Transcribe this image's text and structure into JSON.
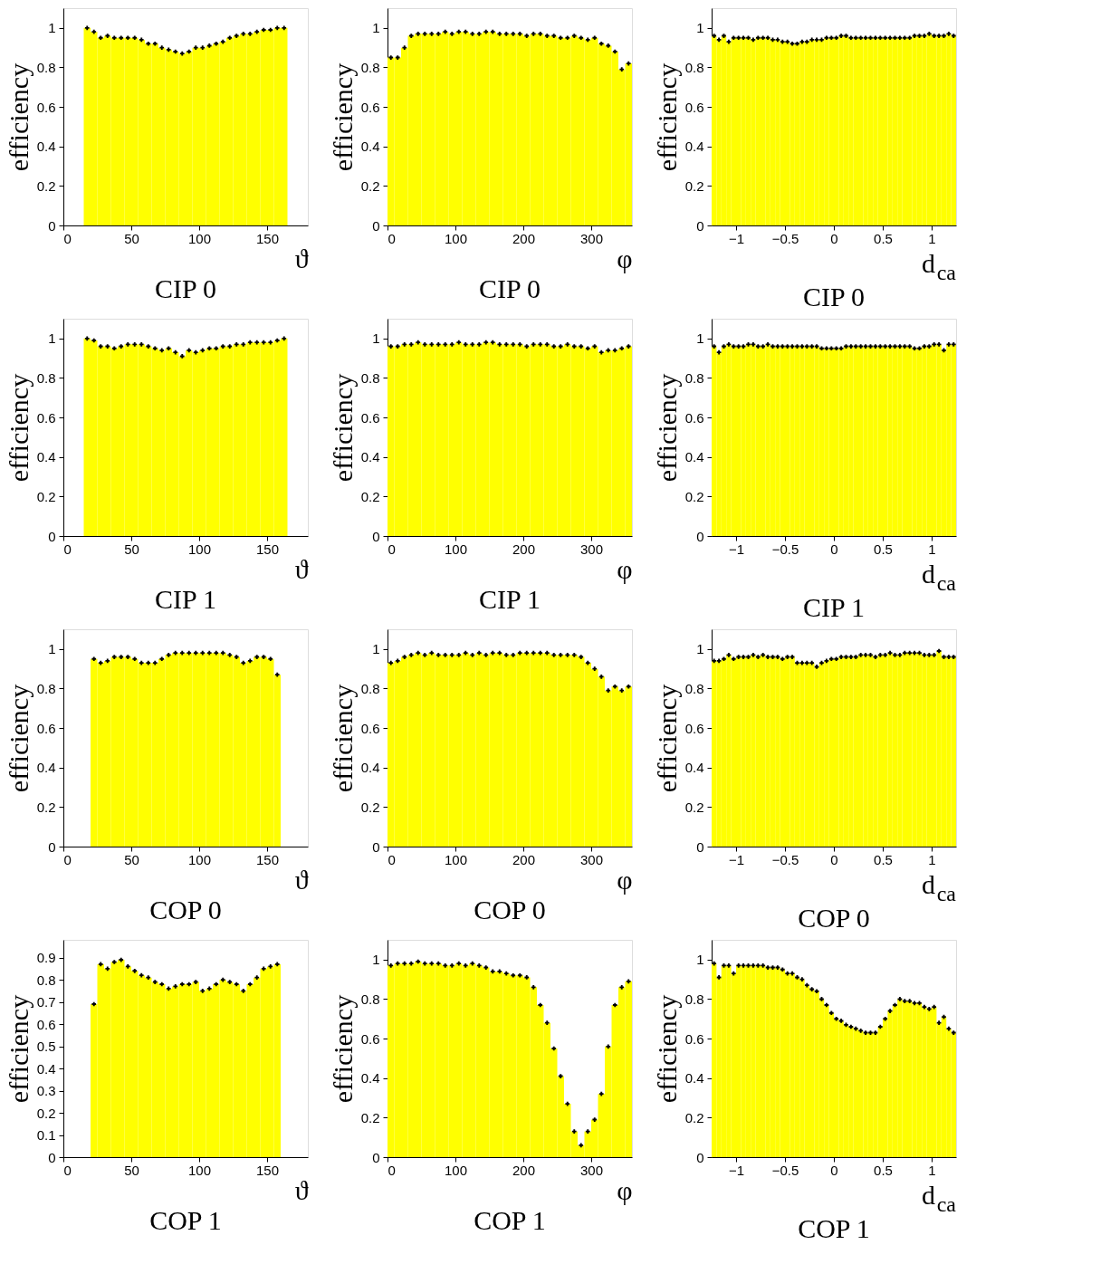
{
  "chart_data": [
    {
      "type": "histogram",
      "title": "CIP 0",
      "xlabel": "ϑ",
      "ylabel": "efficiency",
      "color": "#ffff00",
      "marker": "cross",
      "xlim": [
        0,
        180
      ],
      "xticks": [
        0,
        50,
        100,
        150
      ],
      "ylim": [
        0,
        1.1
      ],
      "yticks": [
        0,
        0.2,
        0.4,
        0.6,
        0.8,
        1
      ],
      "bins": [
        15,
        20,
        25,
        30,
        35,
        40,
        45,
        50,
        55,
        60,
        65,
        70,
        75,
        80,
        85,
        90,
        95,
        100,
        105,
        110,
        115,
        120,
        125,
        130,
        135,
        140,
        145,
        150,
        155,
        160,
        165
      ],
      "values": [
        1.0,
        0.98,
        0.95,
        0.96,
        0.95,
        0.95,
        0.95,
        0.95,
        0.94,
        0.92,
        0.92,
        0.9,
        0.89,
        0.88,
        0.87,
        0.88,
        0.9,
        0.9,
        0.91,
        0.92,
        0.93,
        0.95,
        0.96,
        0.97,
        0.97,
        0.98,
        0.99,
        0.99,
        1.0,
        1.0
      ],
      "series": [
        {
          "type": "scatter",
          "color": "#000000",
          "x": [
            17.5,
            22.5,
            27.5,
            32.5,
            37.5,
            42.5,
            47.5,
            52.5,
            57.5,
            62.5,
            67.5,
            72.5,
            77.5,
            82.5,
            87.5,
            92.5,
            97.5,
            102.5,
            107.5,
            112.5,
            117.5,
            122.5,
            127.5,
            132.5,
            137.5,
            142.5,
            147.5,
            152.5,
            157.5,
            162.5
          ],
          "values": [
            1.0,
            0.98,
            0.95,
            0.96,
            0.95,
            0.95,
            0.95,
            0.95,
            0.94,
            0.92,
            0.92,
            0.9,
            0.89,
            0.88,
            0.87,
            0.88,
            0.9,
            0.9,
            0.91,
            0.92,
            0.93,
            0.95,
            0.96,
            0.97,
            0.97,
            0.98,
            0.99,
            0.99,
            1.0,
            1.0
          ]
        }
      ]
    },
    {
      "type": "histogram",
      "title": "CIP 0",
      "xlabel": "φ",
      "ylabel": "efficiency",
      "color": "#ffff00",
      "marker": "cross",
      "xlim": [
        0,
        360
      ],
      "xticks": [
        0,
        100,
        200,
        300
      ],
      "ylim": [
        0,
        1.1
      ],
      "yticks": [
        0,
        0.2,
        0.4,
        0.6,
        0.8,
        1
      ],
      "bins": [
        0,
        10,
        20,
        30,
        40,
        50,
        60,
        70,
        80,
        90,
        100,
        110,
        120,
        130,
        140,
        150,
        160,
        170,
        180,
        190,
        200,
        210,
        220,
        230,
        240,
        250,
        260,
        270,
        280,
        290,
        300,
        310,
        320,
        330,
        340,
        350,
        360
      ],
      "values": [
        0.85,
        0.85,
        0.9,
        0.96,
        0.97,
        0.97,
        0.97,
        0.97,
        0.98,
        0.97,
        0.98,
        0.98,
        0.97,
        0.97,
        0.98,
        0.98,
        0.97,
        0.97,
        0.97,
        0.97,
        0.96,
        0.97,
        0.97,
        0.96,
        0.96,
        0.95,
        0.95,
        0.96,
        0.95,
        0.94,
        0.95,
        0.92,
        0.91,
        0.88,
        0.79,
        0.82
      ],
      "series": [
        {
          "type": "scatter",
          "color": "#000000",
          "x": [
            5,
            15,
            25,
            35,
            45,
            55,
            65,
            75,
            85,
            95,
            105,
            115,
            125,
            135,
            145,
            155,
            165,
            175,
            185,
            195,
            205,
            215,
            225,
            235,
            245,
            255,
            265,
            275,
            285,
            295,
            305,
            315,
            325,
            335,
            345,
            355
          ],
          "values": [
            0.85,
            0.85,
            0.9,
            0.96,
            0.97,
            0.97,
            0.97,
            0.97,
            0.98,
            0.97,
            0.98,
            0.98,
            0.97,
            0.97,
            0.98,
            0.98,
            0.97,
            0.97,
            0.97,
            0.97,
            0.96,
            0.97,
            0.97,
            0.96,
            0.96,
            0.95,
            0.95,
            0.96,
            0.95,
            0.94,
            0.95,
            0.92,
            0.91,
            0.88,
            0.79,
            0.82
          ]
        }
      ]
    },
    {
      "type": "histogram",
      "title": "CIP 0",
      "xlabel": "d$_{ca}$",
      "ylabel": "efficiency",
      "color": "#ffff00",
      "marker": "cross",
      "xlim": [
        -1.25,
        1.25
      ],
      "xticks": [
        -1,
        -0.5,
        0,
        0.5,
        1
      ],
      "ylim": [
        0,
        1.1
      ],
      "yticks": [
        0,
        0.2,
        0.4,
        0.6,
        0.8,
        1
      ],
      "bins": [
        -1.25,
        -1.2,
        -1.15,
        -1.1,
        -1.05,
        -1.0,
        -0.95,
        -0.9,
        -0.85,
        -0.8,
        -0.75,
        -0.7,
        -0.65,
        -0.6,
        -0.55,
        -0.5,
        -0.45,
        -0.4,
        -0.35,
        -0.3,
        -0.25,
        -0.2,
        -0.15,
        -0.1,
        -0.05,
        0,
        0.05,
        0.1,
        0.15,
        0.2,
        0.25,
        0.3,
        0.35,
        0.4,
        0.45,
        0.5,
        0.55,
        0.6,
        0.65,
        0.7,
        0.75,
        0.8,
        0.85,
        0.9,
        0.95,
        1.0,
        1.05,
        1.1,
        1.15,
        1.2,
        1.25
      ],
      "values": [
        0.96,
        0.94,
        0.96,
        0.93,
        0.95,
        0.95,
        0.95,
        0.95,
        0.94,
        0.95,
        0.95,
        0.95,
        0.94,
        0.94,
        0.93,
        0.93,
        0.92,
        0.92,
        0.93,
        0.93,
        0.94,
        0.94,
        0.94,
        0.95,
        0.95,
        0.95,
        0.96,
        0.96,
        0.95,
        0.95,
        0.95,
        0.95,
        0.95,
        0.95,
        0.95,
        0.95,
        0.95,
        0.95,
        0.95,
        0.95,
        0.95,
        0.96,
        0.96,
        0.96,
        0.97,
        0.96,
        0.96,
        0.96,
        0.97,
        0.96
      ],
      "series": [
        {
          "type": "scatter",
          "color": "#000000",
          "x": [
            -1.225,
            -1.175,
            -1.125,
            -1.075,
            -1.025,
            -0.975,
            -0.925,
            -0.875,
            -0.825,
            -0.775,
            -0.725,
            -0.675,
            -0.625,
            -0.575,
            -0.525,
            -0.475,
            -0.425,
            -0.375,
            -0.325,
            -0.275,
            -0.225,
            -0.175,
            -0.125,
            -0.075,
            -0.025,
            0.025,
            0.075,
            0.125,
            0.175,
            0.225,
            0.275,
            0.325,
            0.375,
            0.425,
            0.475,
            0.525,
            0.575,
            0.625,
            0.675,
            0.725,
            0.775,
            0.825,
            0.875,
            0.925,
            0.975,
            1.025,
            1.075,
            1.125,
            1.175,
            1.225
          ],
          "values": [
            0.96,
            0.94,
            0.96,
            0.93,
            0.95,
            0.95,
            0.95,
            0.95,
            0.94,
            0.95,
            0.95,
            0.95,
            0.94,
            0.94,
            0.93,
            0.93,
            0.92,
            0.92,
            0.93,
            0.93,
            0.94,
            0.94,
            0.94,
            0.95,
            0.95,
            0.95,
            0.96,
            0.96,
            0.95,
            0.95,
            0.95,
            0.95,
            0.95,
            0.95,
            0.95,
            0.95,
            0.95,
            0.95,
            0.95,
            0.95,
            0.95,
            0.96,
            0.96,
            0.96,
            0.97,
            0.96,
            0.96,
            0.96,
            0.97,
            0.96
          ]
        }
      ]
    },
    {
      "type": "histogram",
      "title": "CIP 1",
      "xlabel": "ϑ",
      "ylabel": "efficiency",
      "color": "#ffff00",
      "marker": "cross",
      "xlim": [
        0,
        180
      ],
      "xticks": [
        0,
        50,
        100,
        150
      ],
      "ylim": [
        0,
        1.1
      ],
      "yticks": [
        0,
        0.2,
        0.4,
        0.6,
        0.8,
        1
      ],
      "bins": [
        15,
        20,
        25,
        30,
        35,
        40,
        45,
        50,
        55,
        60,
        65,
        70,
        75,
        80,
        85,
        90,
        95,
        100,
        105,
        110,
        115,
        120,
        125,
        130,
        135,
        140,
        145,
        150,
        155,
        160,
        165
      ],
      "values": [
        1.0,
        0.99,
        0.96,
        0.96,
        0.95,
        0.96,
        0.97,
        0.97,
        0.97,
        0.96,
        0.95,
        0.94,
        0.95,
        0.93,
        0.91,
        0.94,
        0.93,
        0.94,
        0.95,
        0.95,
        0.96,
        0.96,
        0.97,
        0.97,
        0.98,
        0.98,
        0.98,
        0.98,
        0.99,
        1.0
      ],
      "series": [
        {
          "type": "scatter",
          "color": "#000000",
          "x": [
            17.5,
            22.5,
            27.5,
            32.5,
            37.5,
            42.5,
            47.5,
            52.5,
            57.5,
            62.5,
            67.5,
            72.5,
            77.5,
            82.5,
            87.5,
            92.5,
            97.5,
            102.5,
            107.5,
            112.5,
            117.5,
            122.5,
            127.5,
            132.5,
            137.5,
            142.5,
            147.5,
            152.5,
            157.5,
            162.5
          ],
          "values": [
            1.0,
            0.99,
            0.96,
            0.96,
            0.95,
            0.96,
            0.97,
            0.97,
            0.97,
            0.96,
            0.95,
            0.94,
            0.95,
            0.93,
            0.91,
            0.94,
            0.93,
            0.94,
            0.95,
            0.95,
            0.96,
            0.96,
            0.97,
            0.97,
            0.98,
            0.98,
            0.98,
            0.98,
            0.99,
            1.0
          ]
        }
      ]
    },
    {
      "type": "histogram",
      "title": "CIP 1",
      "xlabel": "φ",
      "ylabel": "efficiency",
      "color": "#ffff00",
      "marker": "cross",
      "xlim": [
        0,
        360
      ],
      "xticks": [
        0,
        100,
        200,
        300
      ],
      "ylim": [
        0,
        1.1
      ],
      "yticks": [
        0,
        0.2,
        0.4,
        0.6,
        0.8,
        1
      ],
      "bins": [
        0,
        10,
        20,
        30,
        40,
        50,
        60,
        70,
        80,
        90,
        100,
        110,
        120,
        130,
        140,
        150,
        160,
        170,
        180,
        190,
        200,
        210,
        220,
        230,
        240,
        250,
        260,
        270,
        280,
        290,
        300,
        310,
        320,
        330,
        340,
        350,
        360
      ],
      "values": [
        0.96,
        0.96,
        0.97,
        0.97,
        0.98,
        0.97,
        0.97,
        0.97,
        0.97,
        0.97,
        0.98,
        0.97,
        0.97,
        0.97,
        0.98,
        0.98,
        0.97,
        0.97,
        0.97,
        0.97,
        0.96,
        0.97,
        0.97,
        0.97,
        0.96,
        0.96,
        0.97,
        0.96,
        0.96,
        0.95,
        0.96,
        0.93,
        0.94,
        0.94,
        0.95,
        0.96
      ],
      "series": [
        {
          "type": "scatter",
          "color": "#000000",
          "x": [
            5,
            15,
            25,
            35,
            45,
            55,
            65,
            75,
            85,
            95,
            105,
            115,
            125,
            135,
            145,
            155,
            165,
            175,
            185,
            195,
            205,
            215,
            225,
            235,
            245,
            255,
            265,
            275,
            285,
            295,
            305,
            315,
            325,
            335,
            345,
            355
          ],
          "values": [
            0.96,
            0.96,
            0.97,
            0.97,
            0.98,
            0.97,
            0.97,
            0.97,
            0.97,
            0.97,
            0.98,
            0.97,
            0.97,
            0.97,
            0.98,
            0.98,
            0.97,
            0.97,
            0.97,
            0.97,
            0.96,
            0.97,
            0.97,
            0.97,
            0.96,
            0.96,
            0.97,
            0.96,
            0.96,
            0.95,
            0.96,
            0.93,
            0.94,
            0.94,
            0.95,
            0.96
          ]
        }
      ]
    },
    {
      "type": "histogram",
      "title": "CIP 1",
      "xlabel": "d$_{ca}$",
      "ylabel": "efficiency",
      "color": "#ffff00",
      "marker": "cross",
      "xlim": [
        -1.25,
        1.25
      ],
      "xticks": [
        -1,
        -0.5,
        0,
        0.5,
        1
      ],
      "ylim": [
        0,
        1.1
      ],
      "yticks": [
        0,
        0.2,
        0.4,
        0.6,
        0.8,
        1
      ],
      "bins": [
        -1.25,
        -1.2,
        -1.15,
        -1.1,
        -1.05,
        -1.0,
        -0.95,
        -0.9,
        -0.85,
        -0.8,
        -0.75,
        -0.7,
        -0.65,
        -0.6,
        -0.55,
        -0.5,
        -0.45,
        -0.4,
        -0.35,
        -0.3,
        -0.25,
        -0.2,
        -0.15,
        -0.1,
        -0.05,
        0,
        0.05,
        0.1,
        0.15,
        0.2,
        0.25,
        0.3,
        0.35,
        0.4,
        0.45,
        0.5,
        0.55,
        0.6,
        0.65,
        0.7,
        0.75,
        0.8,
        0.85,
        0.9,
        0.95,
        1.0,
        1.05,
        1.1,
        1.15,
        1.2,
        1.25
      ],
      "values": [
        0.96,
        0.93,
        0.96,
        0.97,
        0.96,
        0.96,
        0.96,
        0.97,
        0.97,
        0.96,
        0.96,
        0.97,
        0.96,
        0.96,
        0.96,
        0.96,
        0.96,
        0.96,
        0.96,
        0.96,
        0.96,
        0.96,
        0.95,
        0.95,
        0.95,
        0.95,
        0.95,
        0.96,
        0.96,
        0.96,
        0.96,
        0.96,
        0.96,
        0.96,
        0.96,
        0.96,
        0.96,
        0.96,
        0.96,
        0.96,
        0.96,
        0.95,
        0.95,
        0.96,
        0.96,
        0.97,
        0.97,
        0.94,
        0.97,
        0.97
      ],
      "series": [
        {
          "type": "scatter",
          "color": "#000000",
          "x": [
            -1.225,
            -1.175,
            -1.125,
            -1.075,
            -1.025,
            -0.975,
            -0.925,
            -0.875,
            -0.825,
            -0.775,
            -0.725,
            -0.675,
            -0.625,
            -0.575,
            -0.525,
            -0.475,
            -0.425,
            -0.375,
            -0.325,
            -0.275,
            -0.225,
            -0.175,
            -0.125,
            -0.075,
            -0.025,
            0.025,
            0.075,
            0.125,
            0.175,
            0.225,
            0.275,
            0.325,
            0.375,
            0.425,
            0.475,
            0.525,
            0.575,
            0.625,
            0.675,
            0.725,
            0.775,
            0.825,
            0.875,
            0.925,
            0.975,
            1.025,
            1.075,
            1.125,
            1.175,
            1.225
          ],
          "values": [
            0.96,
            0.93,
            0.96,
            0.97,
            0.96,
            0.96,
            0.96,
            0.97,
            0.97,
            0.96,
            0.96,
            0.97,
            0.96,
            0.96,
            0.96,
            0.96,
            0.96,
            0.96,
            0.96,
            0.96,
            0.96,
            0.96,
            0.95,
            0.95,
            0.95,
            0.95,
            0.95,
            0.96,
            0.96,
            0.96,
            0.96,
            0.96,
            0.96,
            0.96,
            0.96,
            0.96,
            0.96,
            0.96,
            0.96,
            0.96,
            0.96,
            0.95,
            0.95,
            0.96,
            0.96,
            0.97,
            0.97,
            0.94,
            0.97,
            0.97
          ]
        }
      ]
    },
    {
      "type": "histogram",
      "title": "COP 0",
      "xlabel": "ϑ",
      "ylabel": "efficiency",
      "color": "#ffff00",
      "marker": "cross",
      "xlim": [
        0,
        180
      ],
      "xticks": [
        0,
        50,
        100,
        150
      ],
      "ylim": [
        0,
        1.1
      ],
      "yticks": [
        0,
        0.2,
        0.4,
        0.6,
        0.8,
        1
      ],
      "bins": [
        20,
        25,
        30,
        35,
        40,
        45,
        50,
        55,
        60,
        65,
        70,
        75,
        80,
        85,
        90,
        95,
        100,
        105,
        110,
        115,
        120,
        125,
        130,
        135,
        140,
        145,
        150,
        155,
        160
      ],
      "values": [
        0.95,
        0.93,
        0.94,
        0.96,
        0.96,
        0.96,
        0.95,
        0.93,
        0.93,
        0.93,
        0.95,
        0.97,
        0.98,
        0.98,
        0.98,
        0.98,
        0.98,
        0.98,
        0.98,
        0.98,
        0.97,
        0.96,
        0.93,
        0.94,
        0.96,
        0.96,
        0.95,
        0.87
      ],
      "series": [
        {
          "type": "scatter",
          "color": "#000000",
          "x": [
            22.5,
            27.5,
            32.5,
            37.5,
            42.5,
            47.5,
            52.5,
            57.5,
            62.5,
            67.5,
            72.5,
            77.5,
            82.5,
            87.5,
            92.5,
            97.5,
            102.5,
            107.5,
            112.5,
            117.5,
            122.5,
            127.5,
            132.5,
            137.5,
            142.5,
            147.5,
            152.5,
            157.5
          ],
          "values": [
            0.95,
            0.93,
            0.94,
            0.96,
            0.96,
            0.96,
            0.95,
            0.93,
            0.93,
            0.93,
            0.95,
            0.97,
            0.98,
            0.98,
            0.98,
            0.98,
            0.98,
            0.98,
            0.98,
            0.98,
            0.97,
            0.96,
            0.93,
            0.94,
            0.96,
            0.96,
            0.95,
            0.87
          ]
        }
      ]
    },
    {
      "type": "histogram",
      "title": "COP 0",
      "xlabel": "φ",
      "ylabel": "efficiency",
      "color": "#ffff00",
      "marker": "cross",
      "xlim": [
        0,
        360
      ],
      "xticks": [
        0,
        100,
        200,
        300
      ],
      "ylim": [
        0,
        1.1
      ],
      "yticks": [
        0,
        0.2,
        0.4,
        0.6,
        0.8,
        1
      ],
      "bins": [
        0,
        10,
        20,
        30,
        40,
        50,
        60,
        70,
        80,
        90,
        100,
        110,
        120,
        130,
        140,
        150,
        160,
        170,
        180,
        190,
        200,
        210,
        220,
        230,
        240,
        250,
        260,
        270,
        280,
        290,
        300,
        310,
        320,
        330,
        340,
        350,
        360
      ],
      "values": [
        0.93,
        0.94,
        0.96,
        0.97,
        0.98,
        0.97,
        0.98,
        0.97,
        0.97,
        0.97,
        0.97,
        0.98,
        0.97,
        0.98,
        0.97,
        0.98,
        0.98,
        0.97,
        0.97,
        0.98,
        0.98,
        0.98,
        0.98,
        0.98,
        0.97,
        0.97,
        0.97,
        0.97,
        0.96,
        0.93,
        0.9,
        0.86,
        0.79,
        0.81,
        0.79,
        0.81
      ],
      "series": [
        {
          "type": "scatter",
          "color": "#000000",
          "x": [
            5,
            15,
            25,
            35,
            45,
            55,
            65,
            75,
            85,
            95,
            105,
            115,
            125,
            135,
            145,
            155,
            165,
            175,
            185,
            195,
            205,
            215,
            225,
            235,
            245,
            255,
            265,
            275,
            285,
            295,
            305,
            315,
            325,
            335,
            345,
            355
          ],
          "values": [
            0.93,
            0.94,
            0.96,
            0.97,
            0.98,
            0.97,
            0.98,
            0.97,
            0.97,
            0.97,
            0.97,
            0.98,
            0.97,
            0.98,
            0.97,
            0.98,
            0.98,
            0.97,
            0.97,
            0.98,
            0.98,
            0.98,
            0.98,
            0.98,
            0.97,
            0.97,
            0.97,
            0.97,
            0.96,
            0.93,
            0.9,
            0.86,
            0.79,
            0.81,
            0.79,
            0.81
          ]
        }
      ]
    },
    {
      "type": "histogram",
      "title": "COP 0",
      "xlabel": "d$_{ca}$",
      "ylabel": "efficiency",
      "color": "#ffff00",
      "marker": "cross",
      "xlim": [
        -1.25,
        1.25
      ],
      "xticks": [
        -1,
        -0.5,
        0,
        0.5,
        1
      ],
      "ylim": [
        0,
        1.1
      ],
      "yticks": [
        0,
        0.2,
        0.4,
        0.6,
        0.8,
        1
      ],
      "bins": [
        -1.25,
        -1.2,
        -1.15,
        -1.1,
        -1.05,
        -1.0,
        -0.95,
        -0.9,
        -0.85,
        -0.8,
        -0.75,
        -0.7,
        -0.65,
        -0.6,
        -0.55,
        -0.5,
        -0.45,
        -0.4,
        -0.35,
        -0.3,
        -0.25,
        -0.2,
        -0.15,
        -0.1,
        -0.05,
        0,
        0.05,
        0.1,
        0.15,
        0.2,
        0.25,
        0.3,
        0.35,
        0.4,
        0.45,
        0.5,
        0.55,
        0.6,
        0.65,
        0.7,
        0.75,
        0.8,
        0.85,
        0.9,
        0.95,
        1.0,
        1.05,
        1.1,
        1.15,
        1.2,
        1.25
      ],
      "values": [
        0.94,
        0.94,
        0.95,
        0.97,
        0.95,
        0.96,
        0.96,
        0.96,
        0.97,
        0.96,
        0.97,
        0.96,
        0.96,
        0.96,
        0.95,
        0.96,
        0.96,
        0.93,
        0.93,
        0.93,
        0.93,
        0.91,
        0.93,
        0.94,
        0.95,
        0.95,
        0.96,
        0.96,
        0.96,
        0.96,
        0.97,
        0.97,
        0.97,
        0.96,
        0.97,
        0.97,
        0.98,
        0.97,
        0.97,
        0.98,
        0.98,
        0.98,
        0.98,
        0.97,
        0.97,
        0.97,
        0.99,
        0.96,
        0.96,
        0.96
      ],
      "series": [
        {
          "type": "scatter",
          "color": "#000000",
          "x": [
            -1.225,
            -1.175,
            -1.125,
            -1.075,
            -1.025,
            -0.975,
            -0.925,
            -0.875,
            -0.825,
            -0.775,
            -0.725,
            -0.675,
            -0.625,
            -0.575,
            -0.525,
            -0.475,
            -0.425,
            -0.375,
            -0.325,
            -0.275,
            -0.225,
            -0.175,
            -0.125,
            -0.075,
            -0.025,
            0.025,
            0.075,
            0.125,
            0.175,
            0.225,
            0.275,
            0.325,
            0.375,
            0.425,
            0.475,
            0.525,
            0.575,
            0.625,
            0.675,
            0.725,
            0.775,
            0.825,
            0.875,
            0.925,
            0.975,
            1.025,
            1.075,
            1.125,
            1.175,
            1.225
          ],
          "values": [
            0.94,
            0.94,
            0.95,
            0.97,
            0.95,
            0.96,
            0.96,
            0.96,
            0.97,
            0.96,
            0.97,
            0.96,
            0.96,
            0.96,
            0.95,
            0.96,
            0.96,
            0.93,
            0.93,
            0.93,
            0.93,
            0.91,
            0.93,
            0.94,
            0.95,
            0.95,
            0.96,
            0.96,
            0.96,
            0.96,
            0.97,
            0.97,
            0.97,
            0.96,
            0.97,
            0.97,
            0.98,
            0.97,
            0.97,
            0.98,
            0.98,
            0.98,
            0.98,
            0.97,
            0.97,
            0.97,
            0.99,
            0.96,
            0.96,
            0.96
          ]
        }
      ]
    },
    {
      "type": "histogram",
      "title": "COP 1",
      "xlabel": "ϑ",
      "ylabel": "efficiency",
      "color": "#ffff00",
      "marker": "cross",
      "xlim": [
        0,
        180
      ],
      "xticks": [
        0,
        50,
        100,
        150
      ],
      "ylim": [
        0,
        0.98
      ],
      "yticks": [
        0,
        0.1,
        0.2,
        0.3,
        0.4,
        0.5,
        0.6,
        0.7,
        0.8,
        0.9
      ],
      "bins": [
        20,
        25,
        30,
        35,
        40,
        45,
        50,
        55,
        60,
        65,
        70,
        75,
        80,
        85,
        90,
        95,
        100,
        105,
        110,
        115,
        120,
        125,
        130,
        135,
        140,
        145,
        150,
        155,
        160
      ],
      "values": [
        0.69,
        0.87,
        0.85,
        0.88,
        0.89,
        0.86,
        0.84,
        0.82,
        0.81,
        0.79,
        0.78,
        0.76,
        0.77,
        0.78,
        0.78,
        0.79,
        0.75,
        0.76,
        0.78,
        0.8,
        0.79,
        0.78,
        0.75,
        0.78,
        0.81,
        0.85,
        0.86,
        0.87
      ],
      "series": [
        {
          "type": "scatter",
          "color": "#000000",
          "x": [
            22.5,
            27.5,
            32.5,
            37.5,
            42.5,
            47.5,
            52.5,
            57.5,
            62.5,
            67.5,
            72.5,
            77.5,
            82.5,
            87.5,
            92.5,
            97.5,
            102.5,
            107.5,
            112.5,
            117.5,
            122.5,
            127.5,
            132.5,
            137.5,
            142.5,
            147.5,
            152.5,
            157.5
          ],
          "values": [
            0.69,
            0.87,
            0.85,
            0.88,
            0.89,
            0.86,
            0.84,
            0.82,
            0.81,
            0.79,
            0.78,
            0.76,
            0.77,
            0.78,
            0.78,
            0.79,
            0.75,
            0.76,
            0.78,
            0.8,
            0.79,
            0.78,
            0.75,
            0.78,
            0.81,
            0.85,
            0.86,
            0.87
          ]
        }
      ]
    },
    {
      "type": "histogram",
      "title": "COP 1",
      "xlabel": "φ",
      "ylabel": "efficiency",
      "color": "#ffff00",
      "marker": "cross",
      "xlim": [
        0,
        360
      ],
      "xticks": [
        0,
        100,
        200,
        300
      ],
      "ylim": [
        0,
        1.1
      ],
      "yticks": [
        0,
        0.2,
        0.4,
        0.6,
        0.8,
        1
      ],
      "bins": [
        0,
        10,
        20,
        30,
        40,
        50,
        60,
        70,
        80,
        90,
        100,
        110,
        120,
        130,
        140,
        150,
        160,
        170,
        180,
        190,
        200,
        210,
        220,
        230,
        240,
        250,
        260,
        270,
        280,
        290,
        300,
        310,
        320,
        330,
        340,
        350,
        360
      ],
      "values": [
        0.97,
        0.98,
        0.98,
        0.98,
        0.99,
        0.98,
        0.98,
        0.98,
        0.97,
        0.97,
        0.98,
        0.97,
        0.98,
        0.97,
        0.96,
        0.94,
        0.94,
        0.93,
        0.92,
        0.92,
        0.91,
        0.86,
        0.77,
        0.68,
        0.55,
        0.41,
        0.27,
        0.13,
        0.06,
        0.13,
        0.19,
        0.32,
        0.56,
        0.77,
        0.86,
        0.89
      ],
      "series": [
        {
          "type": "scatter",
          "color": "#000000",
          "x": [
            5,
            15,
            25,
            35,
            45,
            55,
            65,
            75,
            85,
            95,
            105,
            115,
            125,
            135,
            145,
            155,
            165,
            175,
            185,
            195,
            205,
            215,
            225,
            235,
            245,
            255,
            265,
            275,
            285,
            295,
            305,
            315,
            325,
            335,
            345,
            355
          ],
          "values": [
            0.97,
            0.98,
            0.98,
            0.98,
            0.99,
            0.98,
            0.98,
            0.98,
            0.97,
            0.97,
            0.98,
            0.97,
            0.98,
            0.97,
            0.96,
            0.94,
            0.94,
            0.93,
            0.92,
            0.92,
            0.91,
            0.86,
            0.77,
            0.68,
            0.55,
            0.41,
            0.27,
            0.13,
            0.06,
            0.13,
            0.19,
            0.32,
            0.56,
            0.77,
            0.86,
            0.89
          ]
        }
      ]
    },
    {
      "type": "histogram",
      "title": "COP 1",
      "xlabel": "d$_{ca}$",
      "ylabel": "efficiency",
      "color": "#ffff00",
      "marker": "cross",
      "xlim": [
        -1.25,
        1.25
      ],
      "xticks": [
        -1,
        -0.5,
        0,
        0.5,
        1
      ],
      "ylim": [
        0,
        1.1
      ],
      "yticks": [
        0,
        0.2,
        0.4,
        0.6,
        0.8,
        1
      ],
      "bins": [
        -1.25,
        -1.2,
        -1.15,
        -1.1,
        -1.05,
        -1.0,
        -0.95,
        -0.9,
        -0.85,
        -0.8,
        -0.75,
        -0.7,
        -0.65,
        -0.6,
        -0.55,
        -0.5,
        -0.45,
        -0.4,
        -0.35,
        -0.3,
        -0.25,
        -0.2,
        -0.15,
        -0.1,
        -0.05,
        0,
        0.05,
        0.1,
        0.15,
        0.2,
        0.25,
        0.3,
        0.35,
        0.4,
        0.45,
        0.5,
        0.55,
        0.6,
        0.65,
        0.7,
        0.75,
        0.8,
        0.85,
        0.9,
        0.95,
        1.0,
        1.05,
        1.1,
        1.15,
        1.2,
        1.25
      ],
      "values": [
        0.98,
        0.91,
        0.97,
        0.97,
        0.93,
        0.97,
        0.97,
        0.97,
        0.97,
        0.97,
        0.97,
        0.96,
        0.96,
        0.96,
        0.95,
        0.93,
        0.93,
        0.91,
        0.9,
        0.87,
        0.85,
        0.84,
        0.8,
        0.77,
        0.73,
        0.7,
        0.69,
        0.67,
        0.66,
        0.65,
        0.64,
        0.63,
        0.63,
        0.63,
        0.66,
        0.7,
        0.74,
        0.77,
        0.8,
        0.79,
        0.79,
        0.78,
        0.78,
        0.76,
        0.75,
        0.76,
        0.68,
        0.71,
        0.65,
        0.63
      ],
      "series": [
        {
          "type": "scatter",
          "color": "#000000",
          "x": [
            -1.225,
            -1.175,
            -1.125,
            -1.075,
            -1.025,
            -0.975,
            -0.925,
            -0.875,
            -0.825,
            -0.775,
            -0.725,
            -0.675,
            -0.625,
            -0.575,
            -0.525,
            -0.475,
            -0.425,
            -0.375,
            -0.325,
            -0.275,
            -0.225,
            -0.175,
            -0.125,
            -0.075,
            -0.025,
            0.025,
            0.075,
            0.125,
            0.175,
            0.225,
            0.275,
            0.325,
            0.375,
            0.425,
            0.475,
            0.525,
            0.575,
            0.625,
            0.675,
            0.725,
            0.775,
            0.825,
            0.875,
            0.925,
            0.975,
            1.025,
            1.075,
            1.125,
            1.175,
            1.225
          ],
          "values": [
            0.98,
            0.91,
            0.97,
            0.97,
            0.93,
            0.97,
            0.97,
            0.97,
            0.97,
            0.97,
            0.97,
            0.96,
            0.96,
            0.96,
            0.95,
            0.93,
            0.93,
            0.91,
            0.9,
            0.87,
            0.85,
            0.84,
            0.8,
            0.77,
            0.73,
            0.7,
            0.69,
            0.67,
            0.66,
            0.65,
            0.64,
            0.63,
            0.63,
            0.63,
            0.66,
            0.7,
            0.74,
            0.77,
            0.8,
            0.79,
            0.79,
            0.78,
            0.78,
            0.76,
            0.75,
            0.76,
            0.68,
            0.71,
            0.65,
            0.63
          ]
        }
      ]
    }
  ]
}
